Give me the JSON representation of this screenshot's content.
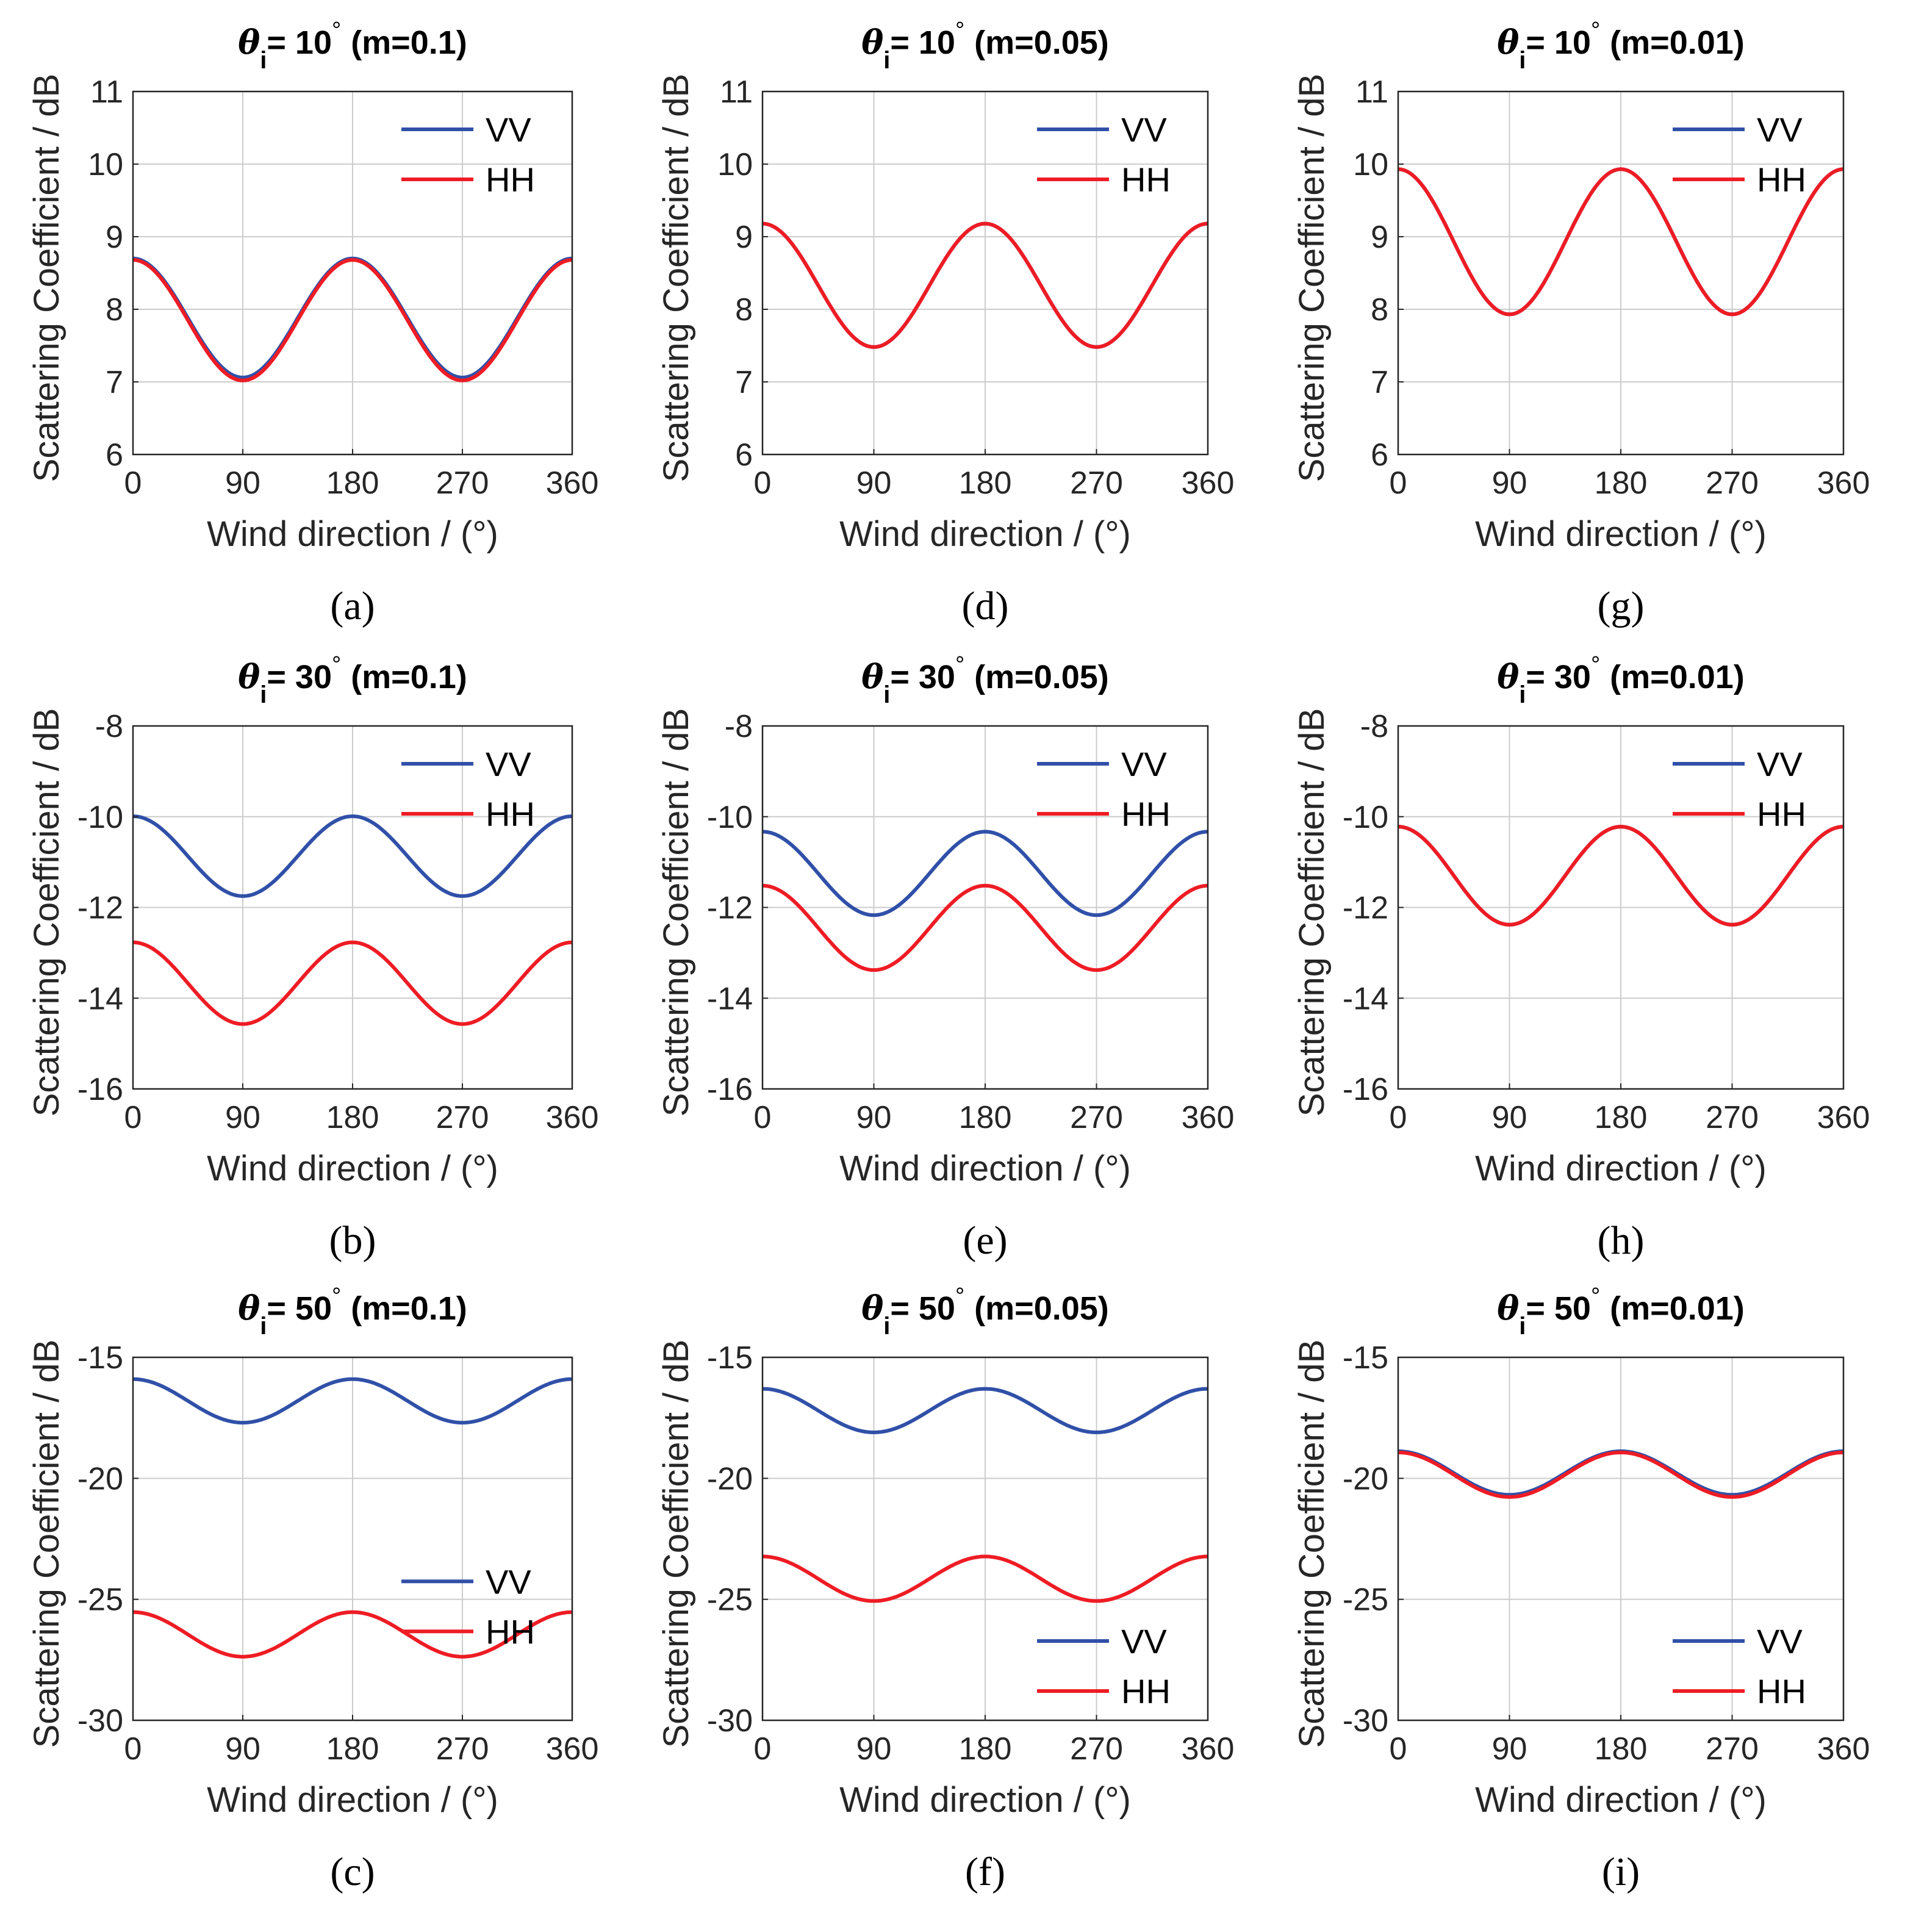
{
  "figure": {
    "colors": {
      "VV": "#3050A8",
      "HH": "#EE1C24",
      "grid": "#CCCCCC",
      "axis": "#262626"
    }
  },
  "chart_data": [
    {
      "id": "a",
      "type": "line",
      "title": {
        "theta": "θ",
        "sub": "i",
        "deg": "= 10",
        "sup": "°",
        "m": "(m=0.1)"
      },
      "caption": "(a)",
      "xlabel": "Wind direction / (°)",
      "ylabel": "Scattering Coefficient / dB",
      "xlim": [
        0,
        360
      ],
      "xticks": [
        0,
        90,
        180,
        270,
        360
      ],
      "ylim": [
        6,
        11
      ],
      "yticks": [
        6,
        7,
        8,
        9,
        10,
        11
      ],
      "legend": "top-right",
      "grid": true,
      "series": [
        {
          "name": "VV",
          "mean": 7.88,
          "amp": 0.82
        },
        {
          "name": "HH",
          "mean": 7.85,
          "amp": 0.83
        }
      ]
    },
    {
      "id": "b",
      "type": "line",
      "title": {
        "theta": "θ",
        "sub": "i",
        "deg": "= 30",
        "sup": "°",
        "m": "(m=0.1)"
      },
      "caption": "(b)",
      "xlabel": "Wind direction / (°)",
      "ylabel": "Scattering Coefficient / dB",
      "xlim": [
        0,
        360
      ],
      "xticks": [
        0,
        90,
        180,
        270,
        360
      ],
      "ylim": [
        -16,
        -8
      ],
      "yticks": [
        -16,
        -14,
        -12,
        -10,
        -8
      ],
      "legend": "top-right",
      "grid": true,
      "series": [
        {
          "name": "VV",
          "mean": -10.87,
          "amp": 0.88
        },
        {
          "name": "HH",
          "mean": -13.67,
          "amp": 0.9
        }
      ]
    },
    {
      "id": "c",
      "type": "line",
      "title": {
        "theta": "θ",
        "sub": "i",
        "deg": "= 50",
        "sup": "°",
        "m": "(m=0.1)"
      },
      "caption": "(c)",
      "xlabel": "Wind direction / (°)",
      "ylabel": "Scattering Coefficient / dB",
      "xlim": [
        0,
        360
      ],
      "xticks": [
        0,
        90,
        180,
        270,
        360
      ],
      "ylim": [
        -30,
        -15
      ],
      "yticks": [
        -30,
        -25,
        -20,
        -15
      ],
      "legend": "middle-right",
      "grid": true,
      "series": [
        {
          "name": "VV",
          "mean": -16.8,
          "amp": 0.9
        },
        {
          "name": "HH",
          "mean": -26.45,
          "amp": 0.92
        }
      ]
    },
    {
      "id": "d",
      "type": "line",
      "title": {
        "theta": "θ",
        "sub": "i",
        "deg": "= 10",
        "sup": "°",
        "m": "(m=0.05)"
      },
      "caption": "(d)",
      "xlabel": "Wind direction / (°)",
      "ylabel": "Scattering Coefficient / dB",
      "xlim": [
        0,
        360
      ],
      "xticks": [
        0,
        90,
        180,
        270,
        360
      ],
      "ylim": [
        6,
        11
      ],
      "yticks": [
        6,
        7,
        8,
        9,
        10,
        11
      ],
      "legend": "top-right",
      "grid": true,
      "series": [
        {
          "name": "VV",
          "mean": 8.33,
          "amp": 0.85
        },
        {
          "name": "HH",
          "mean": 8.33,
          "amp": 0.85
        }
      ]
    },
    {
      "id": "e",
      "type": "line",
      "title": {
        "theta": "θ",
        "sub": "i",
        "deg": "=  30",
        "sup": "°",
        "m": "(m=0.05)"
      },
      "caption": "(e)",
      "xlabel": "Wind direction / (°)",
      "ylabel": "Scattering Coefficient / dB",
      "xlim": [
        0,
        360
      ],
      "xticks": [
        0,
        90,
        180,
        270,
        360
      ],
      "ylim": [
        -16,
        -8
      ],
      "yticks": [
        -16,
        -14,
        -12,
        -10,
        -8
      ],
      "legend": "top-right",
      "grid": true,
      "series": [
        {
          "name": "VV",
          "mean": -11.25,
          "amp": 0.92
        },
        {
          "name": "HH",
          "mean": -12.45,
          "amp": 0.93
        }
      ]
    },
    {
      "id": "f",
      "type": "line",
      "title": {
        "theta": "θ",
        "sub": "i",
        "deg": "= 50",
        "sup": "°",
        "m": "(m=0.05)"
      },
      "caption": "(f)",
      "xlabel": "Wind direction / (°)",
      "ylabel": "Scattering Coefficient / dB",
      "xlim": [
        0,
        360
      ],
      "xticks": [
        0,
        90,
        180,
        270,
        360
      ],
      "ylim": [
        -30,
        -15
      ],
      "yticks": [
        -30,
        -25,
        -20,
        -15
      ],
      "legend": "bottom-right",
      "grid": true,
      "series": [
        {
          "name": "VV",
          "mean": -17.2,
          "amp": 0.9
        },
        {
          "name": "HH",
          "mean": -24.15,
          "amp": 0.92
        }
      ]
    },
    {
      "id": "g",
      "type": "line",
      "title": {
        "theta": "θ",
        "sub": "i",
        "deg": "= 10",
        "sup": "°",
        "m": "(m=0.01)"
      },
      "caption": "(g)",
      "xlabel": "Wind direction / (°)",
      "ylabel": "Scattering Coefficient / dB",
      "xlim": [
        0,
        360
      ],
      "xticks": [
        0,
        90,
        180,
        270,
        360
      ],
      "ylim": [
        6,
        11
      ],
      "yticks": [
        6,
        7,
        8,
        9,
        10,
        11
      ],
      "legend": "top-right",
      "grid": true,
      "series": [
        {
          "name": "VV",
          "mean": 8.93,
          "amp": 1.0
        },
        {
          "name": "HH",
          "mean": 8.93,
          "amp": 1.0
        }
      ]
    },
    {
      "id": "h",
      "type": "line",
      "title": {
        "theta": "θ",
        "sub": "i",
        "deg": "= 30",
        "sup": "°",
        "m": "(m=0.01)"
      },
      "caption": "(h)",
      "xlabel": "Wind direction / (°)",
      "ylabel": "Scattering Coefficient / dB",
      "xlim": [
        0,
        360
      ],
      "xticks": [
        0,
        90,
        180,
        270,
        360
      ],
      "ylim": [
        -16,
        -8
      ],
      "yticks": [
        -16,
        -14,
        -12,
        -10,
        -8
      ],
      "legend": "top-right",
      "grid": true,
      "series": [
        {
          "name": "VV",
          "mean": -11.3,
          "amp": 1.08
        },
        {
          "name": "HH",
          "mean": -11.3,
          "amp": 1.08
        }
      ]
    },
    {
      "id": "i",
      "type": "line",
      "title": {
        "theta": "θ",
        "sub": "i",
        "deg": "= 50",
        "sup": "°",
        "m": "(m=0.01)"
      },
      "caption": "(i)",
      "xlabel": "Wind direction / (°)",
      "ylabel": "Scattering Coefficient / dB",
      "xlim": [
        0,
        360
      ],
      "xticks": [
        0,
        90,
        180,
        270,
        360
      ],
      "ylim": [
        -30,
        -15
      ],
      "yticks": [
        -30,
        -25,
        -20,
        -15
      ],
      "legend": "bottom-right",
      "grid": true,
      "series": [
        {
          "name": "VV",
          "mean": -19.78,
          "amp": 0.9
        },
        {
          "name": "HH",
          "mean": -19.85,
          "amp": 0.92
        }
      ]
    }
  ]
}
